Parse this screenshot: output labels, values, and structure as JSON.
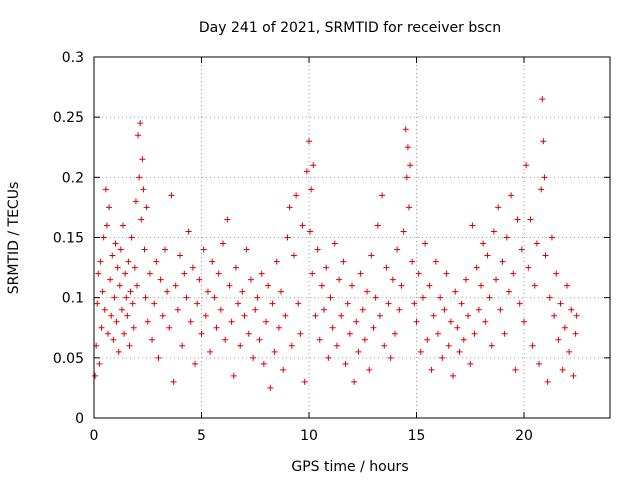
{
  "chart_data": {
    "type": "scatter",
    "title": "Day 241 of 2021, SRMTID for receiver bscn",
    "xlabel": "GPS time / hours",
    "ylabel": "SRMTID / TECUs",
    "xlim": [
      0,
      24
    ],
    "ylim": [
      0,
      0.3
    ],
    "x_ticks": [
      0,
      5,
      10,
      15,
      20
    ],
    "x_tick_labels": [
      "0",
      "5",
      "10",
      "15",
      "20"
    ],
    "y_ticks": [
      0,
      0.05,
      0.1,
      0.15,
      0.2,
      0.25,
      0.3
    ],
    "y_tick_labels": [
      "0",
      "0.05",
      "0.1",
      "0.15",
      "0.2",
      "0.25",
      "0.3"
    ],
    "grid": true,
    "marker": "+",
    "color": "#e00000",
    "series": [
      {
        "name": "SRMTID",
        "points": [
          [
            0.05,
            0.035
          ],
          [
            0.1,
            0.06
          ],
          [
            0.15,
            0.095
          ],
          [
            0.2,
            0.12
          ],
          [
            0.25,
            0.045
          ],
          [
            0.3,
            0.13
          ],
          [
            0.35,
            0.075
          ],
          [
            0.4,
            0.105
          ],
          [
            0.45,
            0.15
          ],
          [
            0.5,
            0.09
          ],
          [
            0.55,
            0.19
          ],
          [
            0.6,
            0.16
          ],
          [
            0.65,
            0.07
          ],
          [
            0.7,
            0.175
          ],
          [
            0.75,
            0.115
          ],
          [
            0.8,
            0.085
          ],
          [
            0.85,
            0.135
          ],
          [
            0.9,
            0.065
          ],
          [
            0.95,
            0.1
          ],
          [
            1.0,
            0.145
          ],
          [
            1.05,
            0.08
          ],
          [
            1.1,
            0.125
          ],
          [
            1.15,
            0.055
          ],
          [
            1.2,
            0.11
          ],
          [
            1.25,
            0.14
          ],
          [
            1.3,
            0.09
          ],
          [
            1.35,
            0.16
          ],
          [
            1.4,
            0.07
          ],
          [
            1.45,
            0.12
          ],
          [
            1.5,
            0.1
          ],
          [
            1.55,
            0.085
          ],
          [
            1.6,
            0.13
          ],
          [
            1.65,
            0.06
          ],
          [
            1.7,
            0.105
          ],
          [
            1.75,
            0.15
          ],
          [
            1.8,
            0.095
          ],
          [
            1.85,
            0.075
          ],
          [
            1.9,
            0.125
          ],
          [
            1.95,
            0.18
          ],
          [
            2.0,
            0.11
          ],
          [
            2.05,
            0.235
          ],
          [
            2.1,
            0.2
          ],
          [
            2.15,
            0.245
          ],
          [
            2.2,
            0.165
          ],
          [
            2.25,
            0.215
          ],
          [
            2.3,
            0.19
          ],
          [
            2.35,
            0.14
          ],
          [
            2.4,
            0.1
          ],
          [
            2.45,
            0.175
          ],
          [
            2.5,
            0.08
          ],
          [
            2.6,
            0.12
          ],
          [
            2.7,
            0.065
          ],
          [
            2.8,
            0.095
          ],
          [
            2.9,
            0.13
          ],
          [
            3.0,
            0.05
          ],
          [
            3.1,
            0.115
          ],
          [
            3.2,
            0.085
          ],
          [
            3.3,
            0.14
          ],
          [
            3.4,
            0.105
          ],
          [
            3.5,
            0.075
          ],
          [
            3.6,
            0.185
          ],
          [
            3.7,
            0.03
          ],
          [
            3.8,
            0.11
          ],
          [
            3.9,
            0.09
          ],
          [
            4.0,
            0.135
          ],
          [
            4.1,
            0.06
          ],
          [
            4.2,
            0.12
          ],
          [
            4.3,
            0.1
          ],
          [
            4.4,
            0.155
          ],
          [
            4.5,
            0.08
          ],
          [
            4.6,
            0.125
          ],
          [
            4.7,
            0.045
          ],
          [
            4.8,
            0.095
          ],
          [
            4.9,
            0.115
          ],
          [
            5.0,
            0.07
          ],
          [
            5.1,
            0.14
          ],
          [
            5.2,
            0.085
          ],
          [
            5.3,
            0.105
          ],
          [
            5.4,
            0.055
          ],
          [
            5.5,
            0.13
          ],
          [
            5.6,
            0.1
          ],
          [
            5.7,
            0.075
          ],
          [
            5.8,
            0.12
          ],
          [
            5.9,
            0.09
          ],
          [
            6.0,
            0.145
          ],
          [
            6.1,
            0.065
          ],
          [
            6.2,
            0.165
          ],
          [
            6.3,
            0.11
          ],
          [
            6.4,
            0.08
          ],
          [
            6.5,
            0.035
          ],
          [
            6.6,
            0.125
          ],
          [
            6.7,
            0.095
          ],
          [
            6.8,
            0.06
          ],
          [
            6.9,
            0.105
          ],
          [
            7.0,
            0.085
          ],
          [
            7.1,
            0.14
          ],
          [
            7.2,
            0.07
          ],
          [
            7.3,
            0.115
          ],
          [
            7.4,
            0.05
          ],
          [
            7.5,
            0.09
          ],
          [
            7.6,
            0.1
          ],
          [
            7.7,
            0.065
          ],
          [
            7.8,
            0.12
          ],
          [
            7.9,
            0.045
          ],
          [
            8.0,
            0.08
          ],
          [
            8.1,
            0.11
          ],
          [
            8.2,
            0.025
          ],
          [
            8.3,
            0.095
          ],
          [
            8.4,
            0.055
          ],
          [
            8.5,
            0.13
          ],
          [
            8.6,
            0.075
          ],
          [
            8.7,
            0.105
          ],
          [
            8.8,
            0.04
          ],
          [
            8.9,
            0.085
          ],
          [
            9.0,
            0.15
          ],
          [
            9.1,
            0.175
          ],
          [
            9.2,
            0.06
          ],
          [
            9.3,
            0.135
          ],
          [
            9.4,
            0.185
          ],
          [
            9.5,
            0.095
          ],
          [
            9.6,
            0.07
          ],
          [
            9.7,
            0.16
          ],
          [
            9.8,
            0.03
          ],
          [
            9.9,
            0.205
          ],
          [
            10.0,
            0.23
          ],
          [
            10.05,
            0.155
          ],
          [
            10.1,
            0.19
          ],
          [
            10.15,
            0.12
          ],
          [
            10.2,
            0.21
          ],
          [
            10.3,
            0.085
          ],
          [
            10.4,
            0.14
          ],
          [
            10.5,
            0.065
          ],
          [
            10.6,
            0.11
          ],
          [
            10.7,
            0.09
          ],
          [
            10.8,
            0.125
          ],
          [
            10.9,
            0.05
          ],
          [
            11.0,
            0.1
          ],
          [
            11.1,
            0.075
          ],
          [
            11.2,
            0.145
          ],
          [
            11.3,
            0.06
          ],
          [
            11.4,
            0.115
          ],
          [
            11.5,
            0.085
          ],
          [
            11.6,
            0.13
          ],
          [
            11.7,
            0.045
          ],
          [
            11.8,
            0.095
          ],
          [
            11.9,
            0.07
          ],
          [
            12.0,
            0.11
          ],
          [
            12.1,
            0.03
          ],
          [
            12.2,
            0.08
          ],
          [
            12.3,
            0.055
          ],
          [
            12.4,
            0.12
          ],
          [
            12.5,
            0.09
          ],
          [
            12.6,
            0.065
          ],
          [
            12.7,
            0.105
          ],
          [
            12.8,
            0.04
          ],
          [
            12.9,
            0.135
          ],
          [
            13.0,
            0.075
          ],
          [
            13.1,
            0.1
          ],
          [
            13.2,
            0.16
          ],
          [
            13.3,
            0.085
          ],
          [
            13.4,
            0.185
          ],
          [
            13.5,
            0.06
          ],
          [
            13.6,
            0.125
          ],
          [
            13.7,
            0.095
          ],
          [
            13.8,
            0.05
          ],
          [
            13.9,
            0.115
          ],
          [
            14.0,
            0.07
          ],
          [
            14.1,
            0.14
          ],
          [
            14.2,
            0.09
          ],
          [
            14.3,
            0.11
          ],
          [
            14.4,
            0.155
          ],
          [
            14.5,
            0.24
          ],
          [
            14.55,
            0.2
          ],
          [
            14.6,
            0.225
          ],
          [
            14.65,
            0.175
          ],
          [
            14.7,
            0.21
          ],
          [
            14.8,
            0.13
          ],
          [
            14.9,
            0.095
          ],
          [
            15.0,
            0.08
          ],
          [
            15.1,
            0.12
          ],
          [
            15.2,
            0.055
          ],
          [
            15.3,
            0.1
          ],
          [
            15.4,
            0.145
          ],
          [
            15.5,
            0.065
          ],
          [
            15.6,
            0.11
          ],
          [
            15.7,
            0.04
          ],
          [
            15.8,
            0.085
          ],
          [
            15.9,
            0.13
          ],
          [
            16.0,
            0.07
          ],
          [
            16.1,
            0.1
          ],
          [
            16.2,
            0.05
          ],
          [
            16.3,
            0.09
          ],
          [
            16.4,
            0.12
          ],
          [
            16.5,
            0.06
          ],
          [
            16.6,
            0.08
          ],
          [
            16.7,
            0.035
          ],
          [
            16.8,
            0.105
          ],
          [
            16.9,
            0.075
          ],
          [
            17.0,
            0.055
          ],
          [
            17.1,
            0.095
          ],
          [
            17.2,
            0.065
          ],
          [
            17.3,
            0.115
          ],
          [
            17.4,
            0.085
          ],
          [
            17.5,
            0.045
          ],
          [
            17.6,
            0.16
          ],
          [
            17.7,
            0.07
          ],
          [
            17.8,
            0.125
          ],
          [
            17.9,
            0.09
          ],
          [
            18.0,
            0.11
          ],
          [
            18.1,
            0.145
          ],
          [
            18.2,
            0.08
          ],
          [
            18.3,
            0.135
          ],
          [
            18.4,
            0.1
          ],
          [
            18.5,
            0.06
          ],
          [
            18.6,
            0.155
          ],
          [
            18.7,
            0.115
          ],
          [
            18.8,
            0.175
          ],
          [
            18.9,
            0.09
          ],
          [
            19.0,
            0.13
          ],
          [
            19.1,
            0.07
          ],
          [
            19.2,
            0.15
          ],
          [
            19.3,
            0.105
          ],
          [
            19.4,
            0.185
          ],
          [
            19.5,
            0.12
          ],
          [
            19.6,
            0.04
          ],
          [
            19.7,
            0.165
          ],
          [
            19.8,
            0.095
          ],
          [
            19.9,
            0.14
          ],
          [
            20.0,
            0.08
          ],
          [
            20.1,
            0.21
          ],
          [
            20.2,
            0.125
          ],
          [
            20.3,
            0.165
          ],
          [
            20.4,
            0.06
          ],
          [
            20.5,
            0.11
          ],
          [
            20.6,
            0.145
          ],
          [
            20.7,
            0.045
          ],
          [
            20.8,
            0.19
          ],
          [
            20.85,
            0.265
          ],
          [
            20.9,
            0.23
          ],
          [
            20.95,
            0.2
          ],
          [
            21.0,
            0.135
          ],
          [
            21.1,
            0.03
          ],
          [
            21.2,
            0.1
          ],
          [
            21.3,
            0.15
          ],
          [
            21.4,
            0.085
          ],
          [
            21.5,
            0.12
          ],
          [
            21.6,
            0.065
          ],
          [
            21.7,
            0.095
          ],
          [
            21.8,
            0.04
          ],
          [
            21.9,
            0.075
          ],
          [
            22.0,
            0.11
          ],
          [
            22.1,
            0.055
          ],
          [
            22.2,
            0.09
          ],
          [
            22.3,
            0.035
          ],
          [
            22.4,
            0.07
          ],
          [
            22.45,
            0.085
          ]
        ]
      }
    ]
  }
}
